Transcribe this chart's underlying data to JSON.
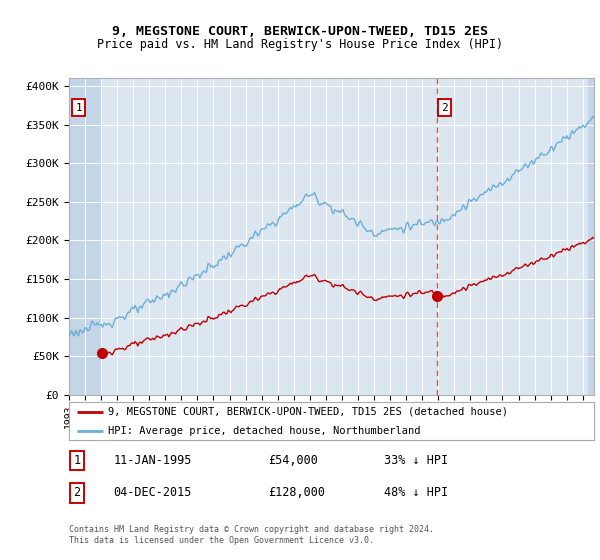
{
  "title1": "9, MEGSTONE COURT, BERWICK-UPON-TWEED, TD15 2ES",
  "title2": "Price paid vs. HM Land Registry's House Price Index (HPI)",
  "ylim": [
    0,
    410000
  ],
  "yticks": [
    0,
    50000,
    100000,
    150000,
    200000,
    250000,
    300000,
    350000,
    400000
  ],
  "ytick_labels": [
    "£0",
    "£50K",
    "£100K",
    "£150K",
    "£200K",
    "£250K",
    "£300K",
    "£350K",
    "£400K"
  ],
  "hpi_color": "#6aaed6",
  "price_color": "#c00000",
  "marker_color": "#c00000",
  "bg_color": "#dce6f1",
  "hatch_color": "#c5d5e8",
  "grid_color": "#ffffff",
  "legend_label_price": "9, MEGSTONE COURT, BERWICK-UPON-TWEED, TD15 2ES (detached house)",
  "legend_label_hpi": "HPI: Average price, detached house, Northumberland",
  "annotation1_date": "11-JAN-1995",
  "annotation1_price": "£54,000",
  "annotation1_hpi": "33% ↓ HPI",
  "annotation2_date": "04-DEC-2015",
  "annotation2_price": "£128,000",
  "annotation2_hpi": "48% ↓ HPI",
  "footer": "Contains HM Land Registry data © Crown copyright and database right 2024.\nThis data is licensed under the Open Government Licence v3.0.",
  "sale1_x": 1995.04,
  "sale1_y": 54000,
  "sale2_x": 2015.92,
  "sale2_y": 128000,
  "xmin": 1993.0,
  "xmax": 2025.7
}
